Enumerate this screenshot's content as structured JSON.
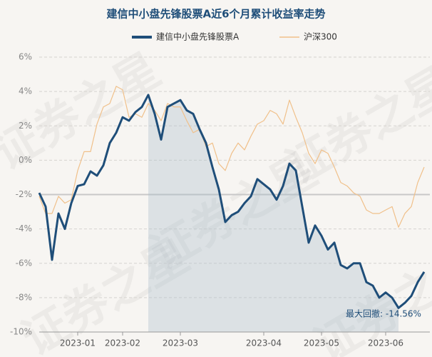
{
  "chart_data": {
    "type": "line",
    "title": "建信中小盘先锋股票A近6个月累计收益率走势",
    "watermark": "证券之星",
    "categories": [
      null,
      null,
      null,
      null,
      null,
      null,
      "2023-01",
      null,
      null,
      null,
      null,
      null,
      null,
      "2023-02",
      null,
      null,
      null,
      null,
      null,
      null,
      null,
      null,
      "2023-03",
      null,
      null,
      null,
      null,
      null,
      null,
      null,
      null,
      null,
      null,
      null,
      null,
      "2023-04",
      null,
      null,
      null,
      null,
      null,
      null,
      null,
      null,
      "2023-05",
      null,
      null,
      null,
      null,
      null,
      null,
      null,
      null,
      null,
      "2023-06",
      null,
      null,
      null,
      null,
      null,
      null
    ],
    "series": [
      {
        "name": "建信中小盘先锋股票A",
        "color": "#1f4e79",
        "values": [
          -1.9,
          -2.7,
          -5.8,
          -3.1,
          -4.0,
          -2.5,
          -1.5,
          -1.4,
          -0.65,
          -0.9,
          -0.3,
          1.0,
          1.6,
          2.5,
          2.3,
          2.8,
          3.1,
          3.8,
          2.7,
          1.2,
          3.1,
          3.3,
          3.5,
          2.9,
          2.7,
          1.8,
          1.0,
          -0.4,
          -1.7,
          -3.6,
          -3.2,
          -3.0,
          -2.5,
          -2.1,
          -1.1,
          -1.4,
          -1.7,
          -2.3,
          -1.5,
          -0.2,
          -0.6,
          -2.7,
          -4.8,
          -3.8,
          -4.4,
          -5.2,
          -4.8,
          -6.1,
          -6.3,
          -6.0,
          -6.0,
          -7.1,
          -7.3,
          -8.0,
          -7.7,
          -8.0,
          -8.6,
          -8.3,
          -7.9,
          -7.1,
          -6.5
        ]
      },
      {
        "name": "沪深300",
        "color": "#f0c08a",
        "values": [
          -2.1,
          -3.1,
          -3.1,
          -2.1,
          -2.5,
          -2.3,
          -0.6,
          0.5,
          0.5,
          2.1,
          3.1,
          3.3,
          4.3,
          4.1,
          2.5,
          2.7,
          2.5,
          3.3,
          2.9,
          2.3,
          3.3,
          3.1,
          3.1,
          2.3,
          1.6,
          1.8,
          0.8,
          1.0,
          -0.2,
          -0.6,
          0.4,
          1.0,
          0.6,
          1.4,
          2.1,
          2.3,
          2.9,
          2.7,
          2.1,
          3.5,
          2.5,
          1.6,
          0.4,
          -0.2,
          0.6,
          0.4,
          -0.4,
          -1.3,
          -1.5,
          -1.9,
          -2.1,
          -2.9,
          -3.1,
          -3.1,
          -2.9,
          -2.7,
          -3.9,
          -3.1,
          -2.7,
          -1.3,
          -0.4
        ]
      }
    ],
    "ylim": [
      -10,
      6
    ],
    "yticks": [
      {
        "value": -10,
        "label": "-10%"
      },
      {
        "value": -8,
        "label": "-8%"
      },
      {
        "value": -6,
        "label": "-6%"
      },
      {
        "value": -4,
        "label": "-4%"
      },
      {
        "value": -2,
        "label": "-2%"
      },
      {
        "value": 0,
        "label": "0%"
      },
      {
        "value": 2,
        "label": "2%"
      },
      {
        "value": 4,
        "label": "4%"
      },
      {
        "value": 6,
        "label": "6%"
      }
    ],
    "reference_line": -2,
    "grid": true,
    "legend": "top",
    "annotation": "最大回撤: -14.56%"
  }
}
